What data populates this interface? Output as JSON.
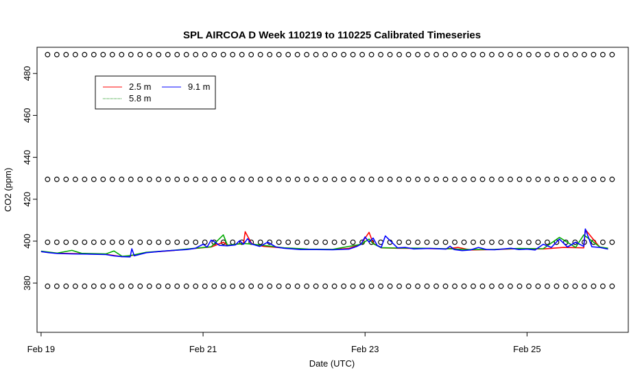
{
  "chart_data": {
    "type": "line",
    "title": "SPL AIRCOA D  Week 110219 to 110225  Calibrated Timeseries",
    "xlabel": "Date (UTC)",
    "ylabel": "CO2 (ppm)",
    "xlim": [
      -0.05,
      7.25
    ],
    "ylim": [
      356.5,
      492.5
    ],
    "x_ticks": [
      0,
      2,
      4,
      6
    ],
    "x_tick_labels": [
      "Feb 19",
      "Feb 21",
      "Feb 23",
      "Feb 25"
    ],
    "y_ticks": [
      380,
      400,
      420,
      440,
      460,
      480
    ],
    "y_tick_labels": [
      "380",
      "400",
      "420",
      "440",
      "460",
      "480"
    ],
    "legend": {
      "placement": "top-left",
      "entries": [
        "2.5 m",
        "9.1 m",
        "5.8 m"
      ]
    },
    "series": [
      {
        "name": "2.5 m",
        "color": "#ff0000",
        "x": [
          0.0,
          0.2,
          0.5,
          0.8,
          1.0,
          1.1,
          1.3,
          1.6,
          1.9,
          2.1,
          2.25,
          2.3,
          2.5,
          2.52,
          2.6,
          2.75,
          3.0,
          3.3,
          3.6,
          3.8,
          3.95,
          4.05,
          4.1,
          4.2,
          4.4,
          4.7,
          5.0,
          5.15,
          5.3,
          5.6,
          5.9,
          6.2,
          6.45,
          6.7,
          6.72,
          6.9,
          7.0
        ],
        "y": [
          395,
          394.2,
          394.0,
          393.7,
          392.6,
          393.0,
          394.6,
          395.4,
          396.5,
          397.2,
          399.5,
          398.0,
          399.0,
          404.5,
          398.8,
          397.5,
          396.7,
          396.1,
          396.0,
          396.5,
          398.6,
          404.2,
          399.0,
          396.8,
          396.6,
          396.5,
          396.3,
          397.0,
          395.8,
          396.0,
          396.4,
          396.3,
          397.0,
          396.8,
          405.5,
          397.0,
          396.5
        ]
      },
      {
        "name": "5.8 m",
        "color": "#00aa00",
        "x": [
          0.0,
          0.2,
          0.38,
          0.5,
          0.8,
          0.9,
          1.0,
          1.1,
          1.3,
          1.6,
          1.9,
          2.1,
          2.25,
          2.3,
          2.5,
          2.6,
          3.0,
          3.3,
          3.6,
          3.95,
          4.05,
          4.1,
          4.2,
          4.4,
          4.7,
          5.0,
          5.3,
          5.6,
          5.9,
          6.2,
          6.4,
          6.6,
          6.7,
          6.9,
          7.0
        ],
        "y": [
          395.2,
          394.3,
          395.6,
          394.2,
          393.9,
          395.3,
          392.8,
          393.1,
          394.7,
          395.5,
          396.6,
          397.3,
          403.0,
          398.1,
          398.9,
          398.6,
          396.8,
          396.2,
          396.1,
          398.5,
          401.0,
          398.8,
          396.9,
          396.7,
          396.6,
          396.4,
          396.0,
          396.1,
          396.5,
          396.4,
          401.8,
          397.0,
          403.0,
          397.2,
          396.6
        ]
      },
      {
        "name": "9.1 m",
        "color": "#0000ff",
        "x": [
          0.0,
          0.1,
          0.2,
          0.4,
          0.6,
          0.8,
          0.9,
          1.0,
          1.1,
          1.12,
          1.15,
          1.3,
          1.5,
          1.6,
          1.8,
          1.9,
          2.0,
          2.05,
          2.1,
          2.15,
          2.2,
          2.3,
          2.4,
          2.45,
          2.5,
          2.55,
          2.6,
          2.7,
          2.8,
          2.9,
          3.0,
          3.2,
          3.4,
          3.6,
          3.8,
          3.9,
          3.95,
          4.0,
          4.05,
          4.1,
          4.15,
          4.2,
          4.25,
          4.4,
          4.5,
          4.6,
          4.8,
          5.0,
          5.05,
          5.1,
          5.2,
          5.3,
          5.4,
          5.5,
          5.6,
          5.8,
          5.9,
          6.0,
          6.1,
          6.2,
          6.3,
          6.4,
          6.5,
          6.6,
          6.7,
          6.72,
          6.8,
          6.9,
          7.0
        ],
        "y": [
          395,
          394.5,
          394.1,
          393.9,
          393.8,
          393.6,
          393.0,
          392.6,
          392.5,
          396.4,
          393.0,
          394.5,
          395.2,
          395.5,
          396.0,
          396.5,
          398.5,
          397.2,
          400.5,
          399.5,
          398.0,
          397.8,
          398.2,
          400.2,
          398.5,
          401.2,
          398.6,
          397.5,
          399.5,
          397.2,
          396.6,
          396.0,
          396.0,
          395.9,
          396.2,
          397.5,
          398.5,
          402.0,
          399.5,
          401.5,
          398.0,
          397.0,
          402.5,
          396.8,
          397.0,
          396.3,
          396.5,
          396.2,
          397.6,
          396.0,
          395.5,
          395.8,
          397.0,
          396.0,
          395.9,
          396.6,
          396.0,
          396.2,
          395.8,
          398.5,
          397.0,
          401.0,
          397.2,
          399.5,
          397.5,
          405.8,
          397.3,
          397.0,
          396.2
        ]
      }
    ],
    "reference_circle_rows": [
      {
        "y": 489,
        "count": 62
      },
      {
        "y": 429.5,
        "count": 62
      },
      {
        "y": 399.5,
        "count": 62
      },
      {
        "y": 378.5,
        "count": 62
      }
    ]
  }
}
